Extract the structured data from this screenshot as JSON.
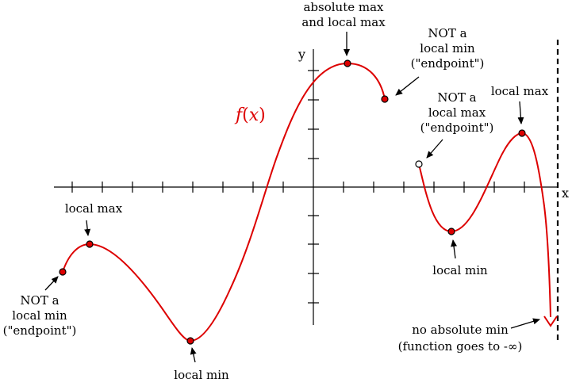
{
  "colors": {
    "curve": "#dd0000",
    "axis": "#000000",
    "point_fill": "#dd0000",
    "open_point_fill": "#ffffff",
    "text": "#000000",
    "function_label": "#dd0000"
  },
  "axes": {
    "x_label": "x",
    "y_label": "y"
  },
  "function_label": {
    "f": "f",
    "paren_open": "(",
    "var": "x",
    "paren_close": ")"
  },
  "annotations": {
    "absolute_max": [
      "absolute max",
      "and local max"
    ],
    "right_endpoint_not_min": [
      "NOT a",
      "local min",
      "(\"endpoint\")"
    ],
    "open_endpoint_not_max": [
      "NOT a",
      "local max",
      "(\"endpoint\")"
    ],
    "right_local_max": [
      "local max"
    ],
    "right_local_min": [
      "local min"
    ],
    "left_local_max": [
      "local max"
    ],
    "left_endpoint_not_min": [
      "NOT a",
      "local min",
      "(\"endpoint\")"
    ],
    "middle_local_min": [
      "local min"
    ],
    "no_absolute_min": [
      "no absolute min",
      "(function goes to -∞)"
    ]
  },
  "points": [
    {
      "id": "left-endpoint",
      "kind": "closed"
    },
    {
      "id": "left-local-max",
      "kind": "closed"
    },
    {
      "id": "middle-local-min",
      "kind": "closed"
    },
    {
      "id": "absolute-max",
      "kind": "closed"
    },
    {
      "id": "right-closed-endpoint",
      "kind": "closed"
    },
    {
      "id": "open-endpoint",
      "kind": "open"
    },
    {
      "id": "right-local-min",
      "kind": "closed"
    },
    {
      "id": "right-local-max",
      "kind": "closed"
    }
  ],
  "icons": {
    "curve_end": "down-arrow-icon",
    "asymptote": "dashed-vertical-line"
  }
}
